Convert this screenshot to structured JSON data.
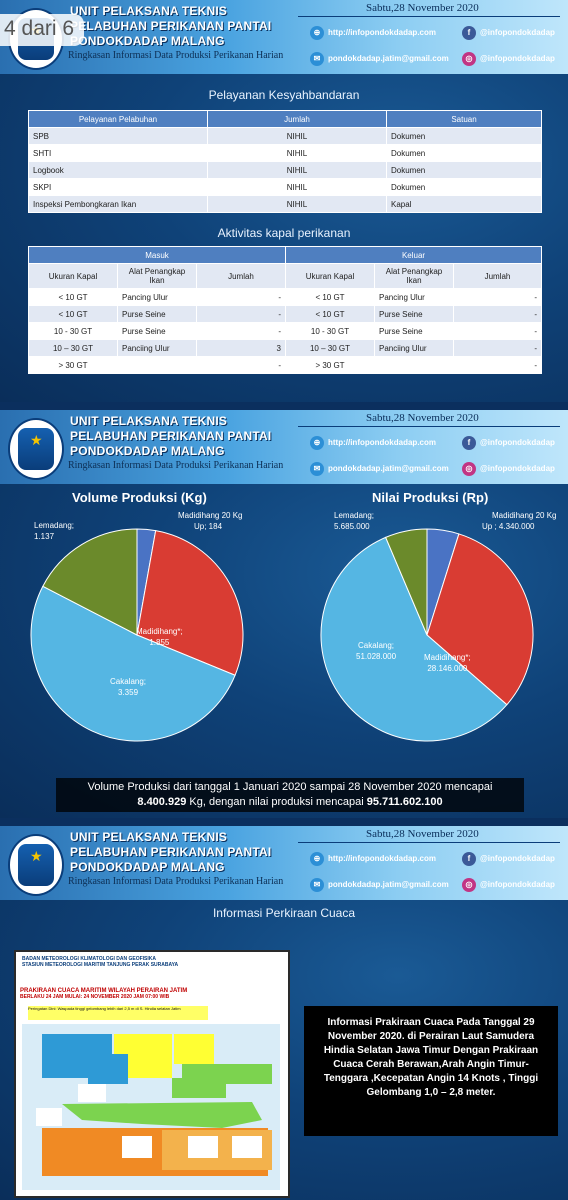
{
  "badge": "4 dari 6",
  "header": {
    "line1": "UNIT PELAKSANA TEKNIS",
    "line2": "PELABUHAN PERIKANAN PANTAI",
    "line3": "PONDOKDADAP MALANG",
    "subtitle": "Ringkasan Informasi Data Produksi Perikanan Harian",
    "date": "Sabtu,28 November 2020",
    "website": "http://infopondokdadap.com",
    "facebook": "@infopondokdadap",
    "email": "pondokdadap.jatim@gmail.com",
    "instagram": "@infopondokdadap"
  },
  "colors": {
    "header_start": "#2a6fb0",
    "table_header": "#4f7fc0",
    "pie_blue": "#4a73c4",
    "pie_red": "#d93c33",
    "pie_lightblue": "#55b6e3",
    "pie_green": "#6b8a2b"
  },
  "pelayanan": {
    "title": "Pelayanan Kesyahbandaran",
    "headers": [
      "Pelayanan Pelabuhan",
      "Jumlah",
      "Satuan"
    ],
    "rows": [
      [
        "SPB",
        "NIHIL",
        "Dokumen"
      ],
      [
        "SHTI",
        "NIHIL",
        "Dokumen"
      ],
      [
        "Logbook",
        "NIHIL",
        "Dokumen"
      ],
      [
        "SKPI",
        "NIHIL",
        "Dokumen"
      ],
      [
        "Inspeksi Pembongkaran Ikan",
        "NIHIL",
        "Kapal"
      ]
    ]
  },
  "aktivitas": {
    "title": "Aktivitas kapal perikanan",
    "masuk": "Masuk",
    "keluar": "Keluar",
    "sub_headers": [
      "Ukuran Kapal",
      "Alat Penangkap Ikan",
      "Jumlah",
      "Ukuran Kapal",
      "Alat Penangkap Ikan",
      "Jumlah"
    ],
    "rows": [
      [
        "< 10 GT",
        "Pancing Ulur",
        "-",
        "< 10 GT",
        "Pancing Ulur",
        "-"
      ],
      [
        "< 10 GT",
        "Purse Seine",
        "-",
        "< 10 GT",
        "Purse Seine",
        "-"
      ],
      [
        "10 -  30 GT",
        "Purse Seine",
        "-",
        "10 -  30 GT",
        "Purse Seine",
        "-"
      ],
      [
        "10 – 30 GT",
        "Panciing Ulur",
        "3",
        "10 – 30 GT",
        "Panciing Ulur",
        "-"
      ],
      [
        "> 30 GT",
        "",
        "-",
        "> 30 GT",
        "",
        "-"
      ]
    ]
  },
  "chart_data": [
    {
      "type": "pie",
      "title": "Volume Produksi (Kg)",
      "labels": [
        "Madidihang 20 Kg Up",
        "Madidihang*",
        "Cakalang",
        "Lemadang"
      ],
      "values": [
        184,
        1855,
        3359,
        1137
      ],
      "value_labels": [
        "184",
        "1.855",
        "3.359",
        "1.137"
      ]
    },
    {
      "type": "pie",
      "title": "Nilai Produksi (Rp)",
      "labels": [
        "Madidihang 20 Kg Up",
        "Madidihang*",
        "Cakalang",
        "Lemadang"
      ],
      "values": [
        4340000,
        28146000,
        51028000,
        5685000
      ],
      "value_labels": [
        "4.340.000",
        "28.146.000",
        "51.028.000",
        "5.685.000"
      ]
    }
  ],
  "pie_text": {
    "vol_lemadang": "Lemadang;",
    "vol_lemadang_val": "1.137",
    "vol_mad20": "Madidihang 20 Kg",
    "vol_mad20_val": "Up;  184",
    "vol_mad": "Madidihang*;",
    "vol_mad_val": "1.855",
    "vol_cak": "Cakalang;",
    "vol_cak_val": "3.359",
    "nil_lemadang": "Lemadang;",
    "nil_lemadang_val": "5.685.000",
    "nil_mad20": "Madidihang 20 Kg",
    "nil_mad20_val": "Up ;  4.340.000",
    "nil_mad": "Madidihang*;",
    "nil_mad_val": "28.146.000",
    "nil_cak": "Cakalang;",
    "nil_cak_val": "51.028.000"
  },
  "summary": {
    "line1": "Volume Produksi dari tanggal 1 Januari 2020 sampai 28 November 2020 mencapai",
    "volume": "8.400.929",
    "mid": " Kg, dengan nilai produksi mencapai ",
    "value": "95.711.602.100"
  },
  "cuaca": {
    "title": "Informasi Perkiraan Cuaca",
    "text": "Informasi Prakiraan Cuaca Pada Tanggal 29 November 2020. di Perairan Laut Samudera Hindia Selatan Jawa Timur Dengan Prakiraan Cuaca Cerah Berawan,Arah Angin Timur-Tenggara ,Kecepatan Angin 14 Knots , Tinggi Gelombang 1,0 – 2,8 meter.",
    "map_org": "BADAN METEOROLOGI KLIMATOLOGI DAN GEOFISIKA",
    "map_station": "STASIUN METEOROLOGI MARITIM TANJUNG PERAK SURABAYA",
    "map_heading": "PRAKIRAAN CUACA MARITIM WILAYAH PERAIRAN JATIM",
    "map_validity": "BERLAKU 24 JAM MULAI: 24 NOVEMBER 2020 JAM 07:00 WIB",
    "map_warning": "Peringatan Dini: Waspada tinggi gelombang lebih dari 2,5 m di S. Hindia selatan Jatim"
  }
}
